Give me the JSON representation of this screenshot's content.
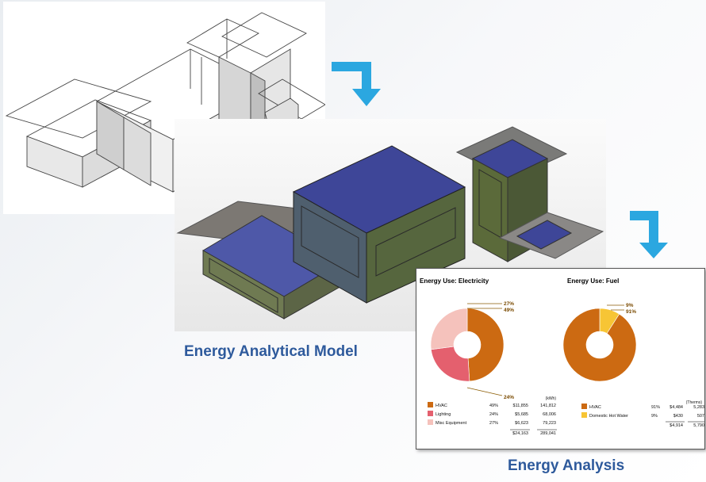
{
  "captions": {
    "model": "Energy Analytical Model",
    "analysis": "Energy Analysis"
  },
  "electricity": {
    "title": "Energy Use: Electricity",
    "callouts": [
      "27%",
      "49%",
      "24%"
    ],
    "unit": "(kWh)",
    "rows": [
      {
        "name": "HVAC",
        "percent": "49%",
        "cost": "$11,855",
        "usage": "141,812",
        "color": "#cc6a12"
      },
      {
        "name": "Lighting",
        "percent": "24%",
        "cost": "$5,685",
        "usage": "68,006",
        "color": "#e4606e"
      },
      {
        "name": "Misc Equipment",
        "percent": "27%",
        "cost": "$6,623",
        "usage": "79,223",
        "color": "#f5c2bc"
      }
    ],
    "total_cost": "$24,163",
    "total_usage": "289,041"
  },
  "fuel": {
    "title": "Energy Use: Fuel",
    "callouts": [
      "9%",
      "91%"
    ],
    "unit": "(Therms)",
    "rows": [
      {
        "name": "HVAC",
        "percent": "91%",
        "cost": "$4,484",
        "usage": "5,283",
        "color": "#cc6a12"
      },
      {
        "name": "Domestic Hot Water",
        "percent": "9%",
        "cost": "$430",
        "usage": "507",
        "color": "#f7c535"
      }
    ],
    "total_cost": "$4,914",
    "total_usage": "5,790"
  },
  "chart_data": [
    {
      "type": "pie",
      "title": "Energy Use: Electricity",
      "categories": [
        "HVAC",
        "Lighting",
        "Misc Equipment"
      ],
      "values": [
        49,
        24,
        27
      ]
    },
    {
      "type": "pie",
      "title": "Energy Use: Fuel",
      "categories": [
        "HVAC",
        "Domestic Hot Water"
      ],
      "values": [
        91,
        9
      ]
    }
  ],
  "colors": {
    "arrow": "#2ba7e0",
    "caption": "#2e5a9c",
    "model_box": "#3a3e8c",
    "model_side": "#5e6e3c"
  }
}
